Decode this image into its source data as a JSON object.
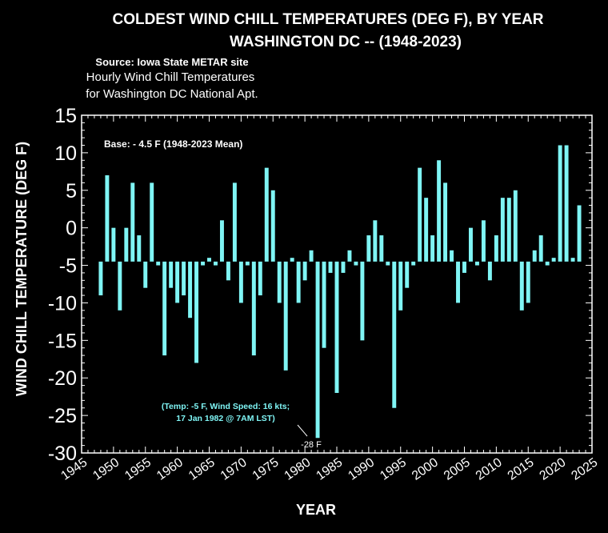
{
  "title_line1": "COLDEST WIND CHILL TEMPERATURES (DEG F), BY YEAR",
  "title_line2": "WASHINGTON DC -- (1948-2023)",
  "source": "Source: Iowa State METAR site",
  "subtitle_line1": "Hourly Wind Chill Temperatures",
  "subtitle_line2": "for Washington DC National Apt.",
  "base_label": "Base: - 4.5 F (1948-2023 Mean)",
  "annotation_line1": "(Temp: -5 F, Wind Speed: 16 kts;",
  "annotation_line2": "17 Jan 1982 @ 7AM LST)",
  "annotation_value": "-28 F",
  "colors": {
    "background": "#000000",
    "bar": "#7ff5f5",
    "text": "#ffffff"
  },
  "chart_data": {
    "type": "bar",
    "title": "COLDEST WIND CHILL TEMPERATURES (DEG F), BY YEAR",
    "xlabel": "YEAR",
    "ylabel": "WIND CHILL TEMPERATURE (DEG F)",
    "xlim": [
      1945,
      2025
    ],
    "ylim": [
      -30,
      15
    ],
    "base": -4.5,
    "xticks": [
      "1945",
      "1950",
      "1955",
      "1960",
      "1965",
      "1970",
      "1975",
      "1980",
      "1985",
      "1990",
      "1995",
      "2000",
      "2005",
      "2010",
      "2015",
      "2020",
      "2025"
    ],
    "yticks": [
      "15",
      "10",
      "5",
      "0",
      "-5",
      "-10",
      "-15",
      "-20",
      "-25",
      "-30"
    ],
    "grid": false,
    "x": [
      1948,
      1949,
      1950,
      1951,
      1952,
      1953,
      1954,
      1955,
      1956,
      1957,
      1958,
      1959,
      1960,
      1961,
      1962,
      1963,
      1964,
      1965,
      1966,
      1967,
      1968,
      1969,
      1970,
      1971,
      1972,
      1973,
      1974,
      1975,
      1976,
      1977,
      1978,
      1979,
      1980,
      1981,
      1982,
      1983,
      1984,
      1985,
      1986,
      1987,
      1988,
      1989,
      1990,
      1991,
      1992,
      1993,
      1994,
      1995,
      1996,
      1997,
      1998,
      1999,
      2000,
      2001,
      2002,
      2003,
      2004,
      2005,
      2006,
      2007,
      2008,
      2009,
      2010,
      2011,
      2012,
      2013,
      2014,
      2015,
      2016,
      2017,
      2018,
      2019,
      2020,
      2021,
      2022,
      2023
    ],
    "values": [
      -9,
      7,
      0,
      -11,
      0,
      6,
      -1,
      -8,
      6,
      -5,
      -17,
      -8,
      -10,
      -9,
      -12,
      -18,
      -5,
      -4,
      -5,
      1,
      -7,
      6,
      -10,
      -5,
      -17,
      -9,
      8,
      5,
      -10,
      -19,
      -4,
      -10,
      -7,
      -3,
      -28,
      -16,
      -6,
      -22,
      -6,
      -3,
      -5,
      -15,
      -1,
      1,
      -1,
      -5,
      -24,
      -11,
      -8,
      -5,
      8,
      4,
      -1,
      9,
      6,
      -3,
      -10,
      -6,
      0,
      -5,
      1,
      -7,
      -1,
      4,
      4,
      5,
      -11,
      -10,
      -3,
      -1,
      -5,
      -4,
      11,
      11,
      -4,
      3
    ]
  }
}
